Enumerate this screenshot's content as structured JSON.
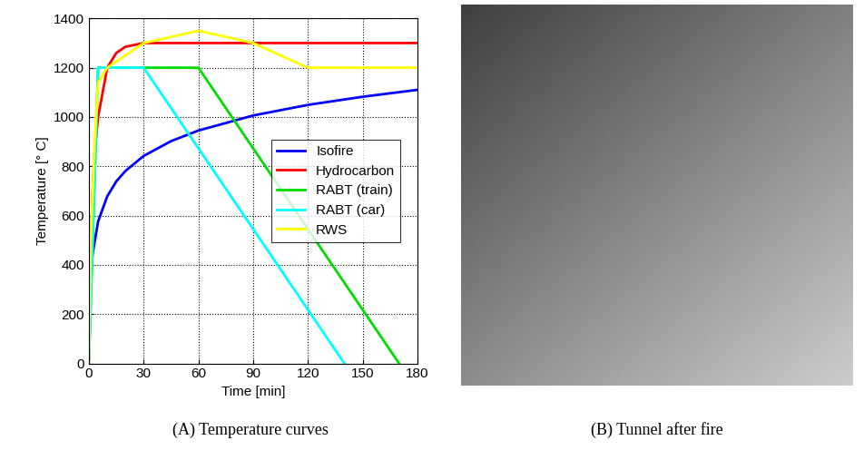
{
  "chart_data": {
    "type": "line",
    "x_label": "Time [min]",
    "y_label": "Temperature [° C]",
    "xlim": [
      0,
      180
    ],
    "xticks": [
      0,
      30,
      60,
      90,
      120,
      150,
      180
    ],
    "ylim": [
      0,
      1400
    ],
    "yticks": [
      0,
      200,
      400,
      600,
      800,
      1000,
      1200,
      1400
    ],
    "grid": true,
    "legend": "center right",
    "series": [
      {
        "name": "Isofire",
        "color": "#0000ff",
        "x": [
          0,
          1,
          2,
          5,
          10,
          15,
          20,
          30,
          45,
          60,
          90,
          120,
          150,
          180
        ],
        "values": [
          20,
          340,
          445,
          576,
          678,
          739,
          781,
          842,
          902,
          945,
          1006,
          1049,
          1082,
          1110
        ]
      },
      {
        "name": "Hydrocarbon",
        "color": "#ff0000",
        "x": [
          0,
          1,
          2,
          3,
          5,
          10,
          15,
          20,
          30,
          180
        ],
        "values": [
          20,
          450,
          700,
          850,
          1000,
          1200,
          1260,
          1285,
          1300,
          1300
        ]
      },
      {
        "name": "RABT (train)",
        "color": "#00dd00",
        "x": [
          0,
          5,
          60,
          170
        ],
        "values": [
          20,
          1200,
          1200,
          0
        ]
      },
      {
        "name": "RABT (car)",
        "color": "#00ffff",
        "x": [
          0,
          5,
          30,
          140
        ],
        "values": [
          20,
          1200,
          1200,
          0
        ]
      },
      {
        "name": "RWS",
        "color": "#ffff00",
        "x": [
          0,
          1,
          3,
          5,
          10,
          30,
          60,
          90,
          120,
          180
        ],
        "values": [
          20,
          500,
          890,
          1140,
          1200,
          1300,
          1350,
          1300,
          1200,
          1200
        ]
      }
    ]
  },
  "captions": [
    "(A) Temperature curves",
    "(B) Tunnel after fire"
  ]
}
